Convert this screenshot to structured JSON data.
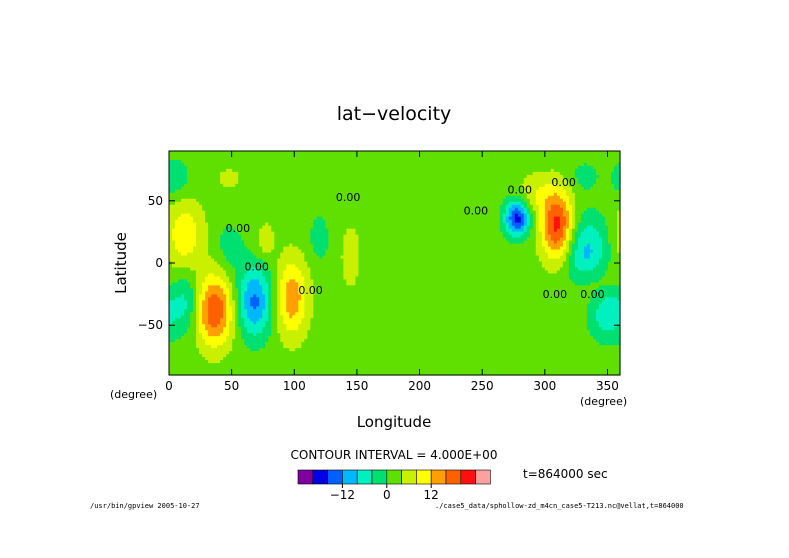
{
  "chart_data": {
    "type": "heatmap",
    "title": "lat−velocity",
    "xlabel": "Longitude",
    "ylabel": "Latitude",
    "x_unit": "(degree)",
    "y_unit": "(degree)",
    "xlim": [
      0,
      360
    ],
    "ylim": [
      -90,
      90
    ],
    "x_ticks": [
      "0",
      "50",
      "100",
      "150",
      "200",
      "250",
      "300",
      "350"
    ],
    "y_ticks": [
      "50",
      "0",
      "−50"
    ],
    "x_tick_values": [
      0,
      50,
      100,
      150,
      200,
      250,
      300,
      350
    ],
    "y_tick_values": [
      50,
      0,
      -50
    ],
    "contour_interval_text": "CONTOUR INTERVAL = 4.000E+00",
    "contour_labels": [
      {
        "text": "0.00",
        "x": 143,
        "y": 50
      },
      {
        "text": "0.00",
        "x": 245,
        "y": 39
      },
      {
        "text": "0.00",
        "x": 55,
        "y": 25
      },
      {
        "text": "0.00",
        "x": 70,
        "y": -6
      },
      {
        "text": "0.00",
        "x": 113,
        "y": -25
      },
      {
        "text": "0.00",
        "x": 280,
        "y": 56
      },
      {
        "text": "0.00",
        "x": 315,
        "y": 62
      },
      {
        "text": "0.00",
        "x": 308,
        "y": -28
      },
      {
        "text": "0.00",
        "x": 338,
        "y": -28
      }
    ],
    "field_features": [
      {
        "lon": 36,
        "lat": -38,
        "value": 18,
        "slon": 11,
        "slat": 20
      },
      {
        "lon": 98,
        "lat": -28,
        "value": 13,
        "slon": 9,
        "slat": 22
      },
      {
        "lon": 68,
        "lat": -31,
        "value": -15,
        "slon": 10,
        "slat": 20
      },
      {
        "lon": 12,
        "lat": 22,
        "value": 9,
        "slon": 11,
        "slat": 20
      },
      {
        "lon": 14,
        "lat": -32,
        "value": -8,
        "slon": 9,
        "slat": 18
      },
      {
        "lon": 48,
        "lat": 12,
        "value": -4,
        "slon": 8,
        "slat": 15
      },
      {
        "lon": 77,
        "lat": 18,
        "value": 5,
        "slon": 5,
        "slat": 10
      },
      {
        "lon": 120,
        "lat": 20,
        "value": -4,
        "slon": 6,
        "slat": 14
      },
      {
        "lon": 145,
        "lat": 5,
        "value": 4,
        "slon": 6,
        "slat": 20
      },
      {
        "lon": 48,
        "lat": 68,
        "value": 4,
        "slon": 7,
        "slat": 6
      },
      {
        "lon": 5,
        "lat": 68,
        "value": -6,
        "slon": 8,
        "slat": 10
      },
      {
        "lon": 278,
        "lat": 36,
        "value": -20,
        "slon": 7,
        "slat": 10
      },
      {
        "lon": 310,
        "lat": 30,
        "value": 20,
        "slon": 9,
        "slat": 20
      },
      {
        "lon": 292,
        "lat": 55,
        "value": 5,
        "slon": 10,
        "slat": 12
      },
      {
        "lon": 333,
        "lat": 5,
        "value": -12,
        "slon": 13,
        "slat": 22
      },
      {
        "lon": 350,
        "lat": -38,
        "value": -10,
        "slon": 10,
        "slat": 16
      },
      {
        "lon": 340,
        "lat": -18,
        "value": 7,
        "slon": 14,
        "slat": 14
      },
      {
        "lon": 332,
        "lat": 70,
        "value": -4,
        "slon": 8,
        "slat": 8
      }
    ],
    "colorbar": {
      "colors": [
        "#7f00a0",
        "#0000e0",
        "#0060ff",
        "#00b8ff",
        "#00f0c0",
        "#00e070",
        "#60e000",
        "#c8f000",
        "#ffff00",
        "#ffa000",
        "#ff6000",
        "#ff1010",
        "#ffa0a0"
      ],
      "levels": [
        -20,
        -16,
        -12,
        -8,
        -4,
        0,
        4,
        8,
        12,
        16,
        20
      ],
      "tick_labels": [
        "−12",
        "0",
        "12"
      ],
      "tick_values": [
        -12,
        0,
        12
      ]
    },
    "time_label": "t=864000 sec",
    "grid": false,
    "legend": "bottom"
  },
  "footer": {
    "left": "/usr/bin/gpview  2005-10-27",
    "right": "./case5_data/sphollow-zd_m4cn_case5-T213.nc@vellat,t=864000"
  }
}
